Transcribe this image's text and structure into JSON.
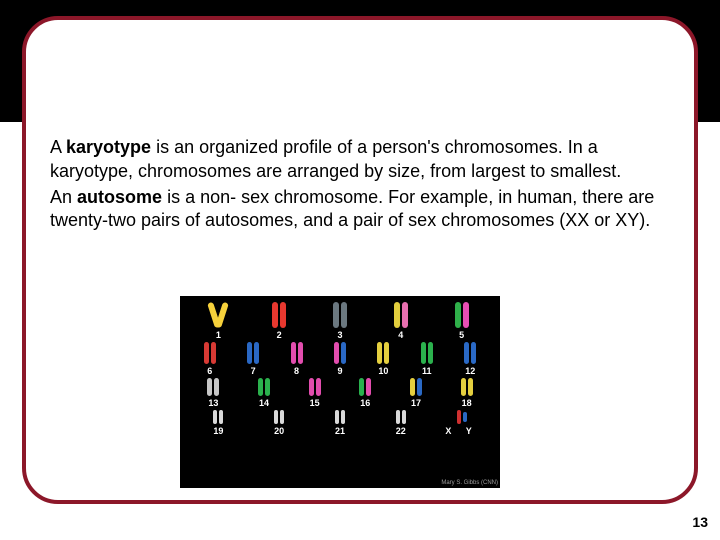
{
  "frame": {
    "border_color": "#8c1729"
  },
  "header": {
    "rule_color": "#ffffff"
  },
  "text": {
    "p1_pre": "A ",
    "p1_bold": "karyotype",
    "p1_post": " is an organized profile of a person's chromosomes. In a karyotype, chromosomes are arranged by size, from largest to smallest.",
    "p2_pre": "An ",
    "p2_bold": "autosome",
    "p2_post": " is a non- sex chromosome. For example, in human, there are twenty-two pairs of autosomes, and a pair  of sex chromosomes (XX or XY)."
  },
  "karyotype": {
    "background": "#000000",
    "label_color": "#ffffff",
    "credit": "Mary S. Gibbs (CNN)",
    "rows": [
      {
        "h": 26,
        "w": 6,
        "pairs": [
          {
            "label": "1",
            "colors": [
              "#f6d13b",
              "#f6d13b"
            ],
            "shape": "tilt"
          },
          {
            "label": "2",
            "colors": [
              "#e8382f",
              "#e8382f"
            ]
          },
          {
            "label": "3",
            "colors": [
              "#6b7880",
              "#6b7880"
            ]
          },
          {
            "label": "4",
            "colors": [
              "#e2ce3d",
              "#e86fb0"
            ]
          },
          {
            "label": "5",
            "colors": [
              "#2fb04a",
              "#e74eb3"
            ]
          }
        ]
      },
      {
        "h": 22,
        "w": 5,
        "pairs": [
          {
            "label": "6",
            "colors": [
              "#d73a34",
              "#d73a34"
            ]
          },
          {
            "label": "7",
            "colors": [
              "#2a68c4",
              "#2a68c4"
            ]
          },
          {
            "label": "8",
            "colors": [
              "#e24dae",
              "#e24dae"
            ]
          },
          {
            "label": "9",
            "colors": [
              "#e24dae",
              "#2a68c4"
            ]
          },
          {
            "label": "10",
            "colors": [
              "#e4cf3f",
              "#e4cf3f"
            ]
          },
          {
            "label": "11",
            "colors": [
              "#2bb14d",
              "#2bb14d"
            ]
          },
          {
            "label": "12",
            "colors": [
              "#2a69c5",
              "#2a69c5"
            ]
          }
        ]
      },
      {
        "h": 18,
        "w": 5,
        "pairs": [
          {
            "label": "13",
            "colors": [
              "#c7c7c7",
              "#c7c7c7"
            ]
          },
          {
            "label": "14",
            "colors": [
              "#2bb14d",
              "#2bb14d"
            ]
          },
          {
            "label": "15",
            "colors": [
              "#e24dae",
              "#e24dae"
            ]
          },
          {
            "label": "16",
            "colors": [
              "#29b14e",
              "#e24dae"
            ]
          },
          {
            "label": "17",
            "colors": [
              "#e4cf3f",
              "#2a69c5"
            ]
          },
          {
            "label": "18",
            "colors": [
              "#e4cf3f",
              "#e4cf3f"
            ]
          }
        ]
      },
      {
        "h": 14,
        "w": 4,
        "pairs": [
          {
            "label": "19",
            "colors": [
              "#d9d9d9",
              "#d9d9d9"
            ]
          },
          {
            "label": "20",
            "colors": [
              "#d9d9d9",
              "#d9d9d9"
            ]
          },
          {
            "label": "21",
            "colors": [
              "#d9d9d9",
              "#d9d9d9"
            ]
          },
          {
            "label": "22",
            "colors": [
              "#d9d9d9",
              "#d9d9d9"
            ]
          },
          {
            "label": "X    Y",
            "colors": [
              "#d03030",
              "#2a69c5"
            ],
            "sex": true,
            "h2": 10
          }
        ]
      }
    ]
  },
  "page_number": "13"
}
